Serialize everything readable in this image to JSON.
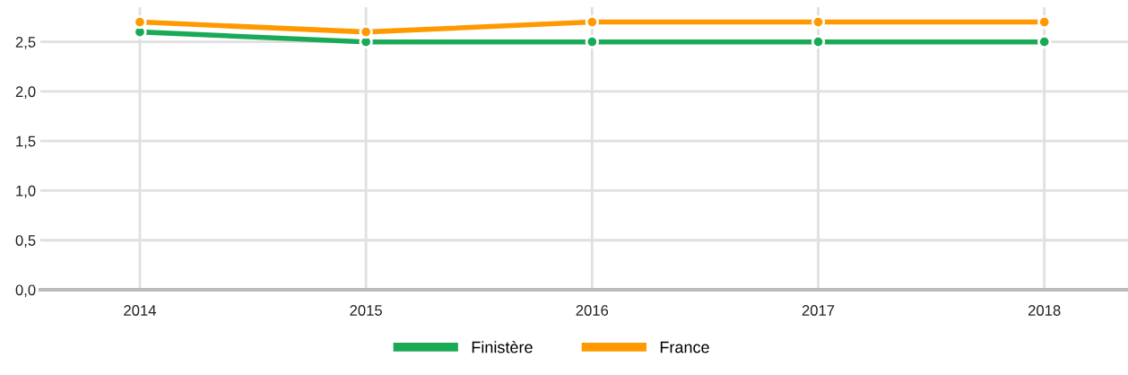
{
  "chart_data": {
    "type": "line",
    "x": [
      2014,
      2015,
      2016,
      2017,
      2018
    ],
    "series": [
      {
        "name": "Finistère",
        "color": "#1aaa55",
        "values": [
          2.6,
          2.5,
          2.5,
          2.5,
          2.5
        ]
      },
      {
        "name": "France",
        "color": "#ff9900",
        "values": [
          2.7,
          2.6,
          2.7,
          2.7,
          2.7
        ]
      }
    ],
    "xlim": [
      2013.56,
      2018.37
    ],
    "xticks": [
      2014,
      2015,
      2016,
      2017,
      2018
    ],
    "ylim": [
      0,
      2.85
    ],
    "yticks": [
      {
        "value": 0,
        "label": "0,0"
      },
      {
        "value": 0.5,
        "label": "0,5"
      },
      {
        "value": 1,
        "label": "1,0"
      },
      {
        "value": 1.5,
        "label": "1,5"
      },
      {
        "value": 2,
        "label": "2,0"
      },
      {
        "value": 2.5,
        "label": "2,5"
      }
    ],
    "grid": true,
    "legend": "bottom",
    "marker": "circle",
    "line_style": "solid"
  }
}
